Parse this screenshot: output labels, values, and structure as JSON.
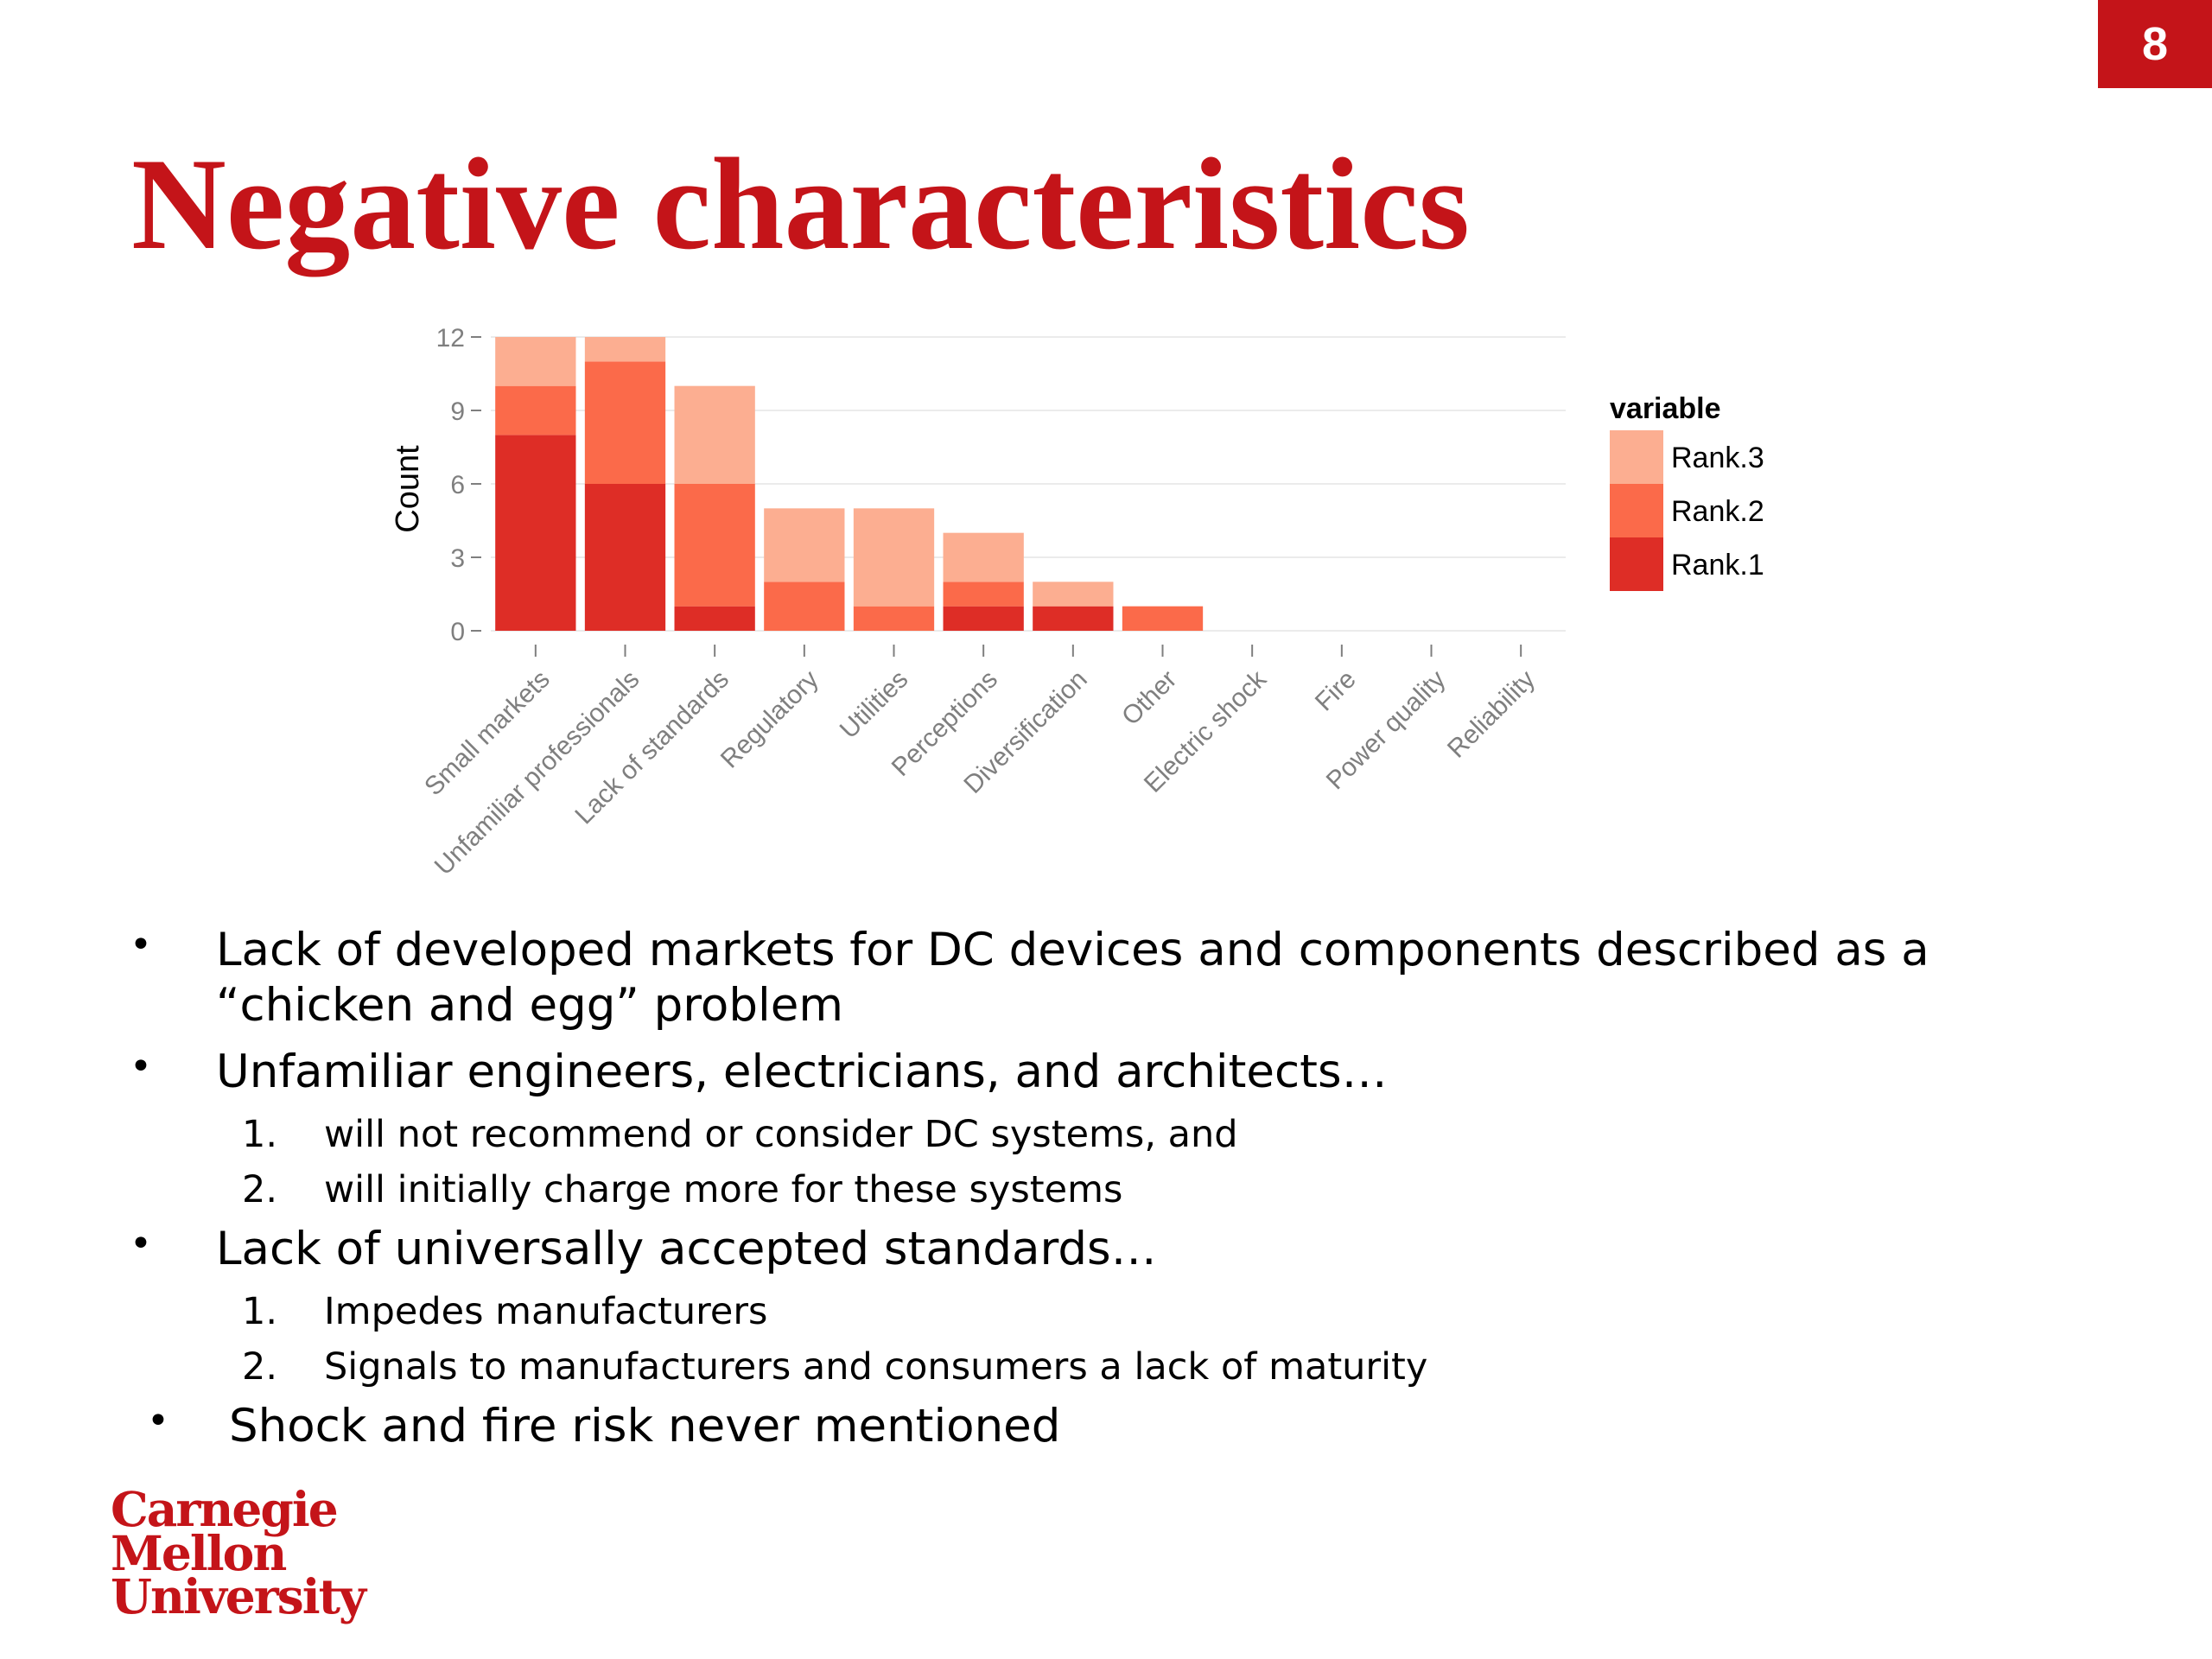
{
  "slide": {
    "number": "8",
    "title": "Negative characteristics"
  },
  "colors": {
    "accent": "#c41419",
    "rank1": "#de2d26",
    "rank2": "#fb6a4a",
    "rank3": "#fcae91"
  },
  "chart_data": {
    "type": "bar",
    "stacked": true,
    "categories": [
      "Small markets",
      "Unfamiliar professionals",
      "Lack of standards",
      "Regulatory",
      "Utilities",
      "Perceptions",
      "Diversification",
      "Other",
      "Electric shock",
      "Fire",
      "Power quality",
      "Reliability"
    ],
    "series": [
      {
        "name": "Rank.1",
        "values": [
          8,
          6,
          1,
          0,
          0,
          1,
          1,
          0,
          0,
          0,
          0,
          0
        ]
      },
      {
        "name": "Rank.2",
        "values": [
          2,
          5,
          5,
          2,
          1,
          1,
          0,
          1,
          0,
          0,
          0,
          0
        ]
      },
      {
        "name": "Rank.3",
        "values": [
          2,
          1,
          4,
          3,
          4,
          2,
          1,
          0,
          0,
          0,
          0,
          0
        ]
      }
    ],
    "ylabel": "Count",
    "xlabel": "",
    "yticks": [
      0,
      3,
      6,
      9,
      12
    ],
    "ylim": [
      0,
      12
    ],
    "legend": {
      "title": "variable",
      "position": "right",
      "entries": [
        "Rank.3",
        "Rank.2",
        "Rank.1"
      ]
    },
    "grid": true
  },
  "bullets": [
    {
      "text": "Lack of developed markets for DC devices and components described as a “chicken and egg” problem",
      "subitems": []
    },
    {
      "text": "Unfamiliar engineers, electricians, and architects…",
      "subitems": [
        {
          "num": "1.",
          "text": "will not recommend or consider DC systems, and"
        },
        {
          "num": "2.",
          "text": "will initially charge more for these systems"
        }
      ]
    },
    {
      "text": "Lack of universally accepted standards…",
      "subitems": [
        {
          "num": "1.",
          "text": "Impedes manufacturers"
        },
        {
          "num": "2.",
          "text": "Signals to manufacturers and consumers a lack of maturity"
        }
      ]
    },
    {
      "text": "Shock and fire risk never mentioned",
      "subitems": []
    }
  ],
  "bullet_marker": "•",
  "logo": {
    "lines": [
      "Carnegie",
      "Mellon",
      "University"
    ]
  }
}
